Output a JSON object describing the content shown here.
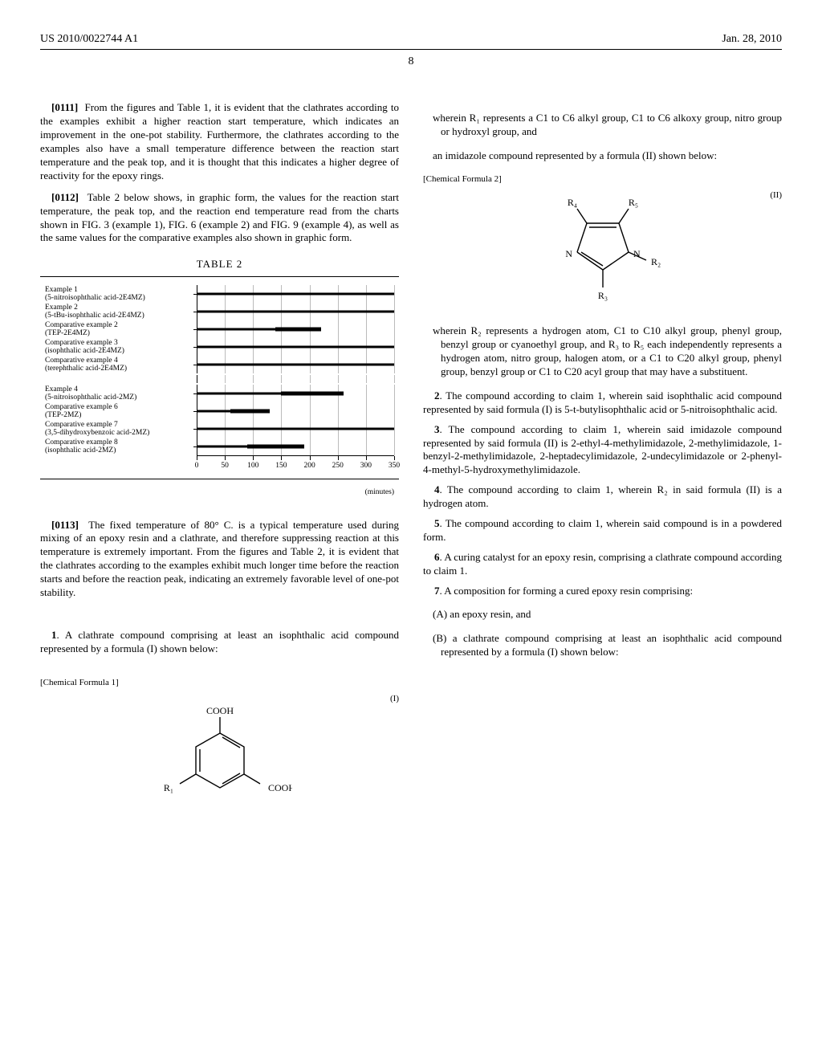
{
  "header": {
    "pub_number": "US 2010/0022744 A1",
    "pub_date": "Jan. 28, 2010"
  },
  "page_number": "8",
  "left_col": {
    "p0111_num": "[0111]",
    "p0111": "From the figures and Table 1, it is evident that the clathrates according to the examples exhibit a higher reaction start temperature, which indicates an improvement in the one-pot stability. Furthermore, the clathrates according to the examples also have a small temperature difference between the reaction start temperature and the peak top, and it is thought that this indicates a higher degree of reactivity for the epoxy rings.",
    "p0112_num": "[0112]",
    "p0112": "Table 2 below shows, in graphic form, the values for the reaction start temperature, the peak top, and the reaction end temperature read from the charts shown in FIG. 3 (example 1), FIG. 6 (example 2) and FIG. 9 (example 4), as well as the same values for the comparative examples also shown in graphic form.",
    "table2_caption": "TABLE 2",
    "table2": {
      "x_min": 0,
      "x_max": 350,
      "ticks": [
        0,
        50,
        100,
        150,
        200,
        250,
        300,
        350
      ],
      "axis_unit": "(minutes)",
      "grid_color": "#bbbbbb",
      "rows": [
        {
          "label1": "Example 1",
          "label2": "(5-nitroisophthalic acid-2E4MZ)",
          "segments": [
            {
              "start": 2,
              "end": 350,
              "thick": false
            }
          ]
        },
        {
          "label1": "Example 2",
          "label2": "(5-tBu-isophthalic acid-2E4MZ)",
          "segments": [
            {
              "start": 2,
              "end": 350,
              "thick": false
            }
          ]
        },
        {
          "label1": "Comparative example 2",
          "label2": "(TEP-2E4MZ)",
          "segments": [
            {
              "start": 2,
              "end": 140,
              "thick": false
            },
            {
              "start": 140,
              "end": 220,
              "thick": true
            }
          ]
        },
        {
          "label1": "Comparative example 3",
          "label2": "(isophthalic acid-2E4MZ)",
          "segments": [
            {
              "start": 2,
              "end": 350,
              "thick": false
            }
          ]
        },
        {
          "label1": "Comparative example 4",
          "label2": "(terephthalic acid-2E4MZ)",
          "segments": [
            {
              "start": 2,
              "end": 350,
              "thick": false
            }
          ]
        },
        {
          "spacer": true
        },
        {
          "label1": "Example 4",
          "label2": "(5-nitroisophthalic acid-2MZ)",
          "segments": [
            {
              "start": 2,
              "end": 150,
              "thick": false
            },
            {
              "start": 150,
              "end": 260,
              "thick": true
            }
          ]
        },
        {
          "label1": "Comparative example 6",
          "label2": "(TEP-2MZ)",
          "segments": [
            {
              "start": 2,
              "end": 60,
              "thick": false
            },
            {
              "start": 60,
              "end": 130,
              "thick": true
            }
          ]
        },
        {
          "label1": "Comparative example 7",
          "label2": "(3,5-dihydroxybenzoic acid-2MZ)",
          "segments": [
            {
              "start": 2,
              "end": 350,
              "thick": false
            }
          ]
        },
        {
          "label1": "Comparative example 8",
          "label2": "(isophthalic acid-2MZ)",
          "segments": [
            {
              "start": 2,
              "end": 90,
              "thick": false
            },
            {
              "start": 90,
              "end": 190,
              "thick": true
            }
          ]
        }
      ]
    },
    "p0113_num": "[0113]",
    "p0113": "The fixed temperature of 80° C. is a typical temperature used during mixing of an epoxy resin and a clathrate, and therefore suppressing reaction at this temperature is extremely important. From the figures and Table 2, it is evident that the clathrates according to the examples exhibit much longer time before the reaction starts and before the reaction peak, indicating an extremely favorable level of one-pot stability.",
    "claim1_num": "1",
    "claim1": ". A clathrate compound comprising at least an isophthalic acid compound represented by a formula (I) shown below:",
    "chem1_label": "[Chemical Formula 1]",
    "formula1_num": "(I)",
    "chem1": {
      "R1": "R₁",
      "COOH1": "COOH",
      "COOH2": "COOH"
    }
  },
  "right_col": {
    "intro_top": "wherein R₁ represents a C1 to C6 alkyl group, C1 to C6 alkoxy group, nitro group or hydroxyl group, and",
    "intro_sub": "an imidazole compound represented by a formula (II) shown below:",
    "chem2_label": "[Chemical Formula 2]",
    "formula2_num": "(II)",
    "chem2": {
      "R2": "R₂",
      "R3": "R₃",
      "R4": "R₄",
      "R5": "R₅",
      "N": "N"
    },
    "claim1_tail": "wherein R₂ represents a hydrogen atom, C1 to C10 alkyl group, phenyl group, benzyl group or cyanoethyl group, and R₃ to R₅ each independently represents a hydrogen atom, nitro group, halogen atom, or a C1 to C20 alkyl group, phenyl group, benzyl group or C1 to C20 acyl group that may have a substituent.",
    "claim2_num": "2",
    "claim2": ". The compound according to claim 1, wherein said isophthalic acid compound represented by said formula (I) is 5-t-butylisophthalic acid or 5-nitroisophthalic acid.",
    "claim3_num": "3",
    "claim3": ". The compound according to claim 1, wherein said imidazole compound represented by said formula (II) is 2-ethyl-4-methylimidazole, 2-methylimidazole, 1-benzyl-2-methylimidazole, 2-heptadecylimidazole, 2-undecylimidazole or 2-phenyl-4-methyl-5-hydroxymethylimidazole.",
    "claim4_num": "4",
    "claim4": ". The compound according to claim 1, wherein R₂ in said formula (II) is a hydrogen atom.",
    "claim5_num": "5",
    "claim5": ". The compound according to claim 1, wherein said compound is in a powdered form.",
    "claim6_num": "6",
    "claim6": ". A curing catalyst for an epoxy resin, comprising a clathrate compound according to claim 1.",
    "claim7_num": "7",
    "claim7": ". A composition for forming a cured epoxy resin comprising:",
    "claim7_a": "(A) an epoxy resin, and",
    "claim7_b": "(B) a clathrate compound comprising at least an isophthalic acid compound represented by a formula (I) shown below:"
  }
}
